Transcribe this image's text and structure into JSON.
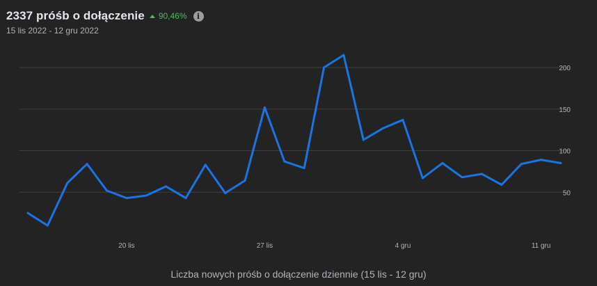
{
  "header": {
    "title": "2337 próśb o dołączenie",
    "change": "90,46%",
    "info_icon": "info-icon",
    "date_range": "15 lis 2022 - 12 gru 2022"
  },
  "colors": {
    "background": "#232324",
    "line": "#1b74e4",
    "grid": "#3e4042",
    "trend_up": "#45bd62",
    "axis_text": "#b0b3b8"
  },
  "chart_data": {
    "type": "line",
    "title": "",
    "xlabel": "Liczba nowych próśb o dołączenie dziennie (15 lis - 12 gru)",
    "ylabel": "",
    "grid": true,
    "ylim": [
      0,
      225
    ],
    "y_ticks": [
      50,
      100,
      150,
      200
    ],
    "x_ticks": [
      {
        "index": 5,
        "label": "20 lis"
      },
      {
        "index": 12,
        "label": "27 lis"
      },
      {
        "index": 19,
        "label": "4 gru"
      },
      {
        "index": 26,
        "label": "11 gru"
      }
    ],
    "series": [
      {
        "values": [
          25,
          10,
          61,
          84,
          52,
          43,
          46,
          57,
          43,
          83,
          49,
          64,
          152,
          87,
          79,
          200,
          215,
          113,
          127,
          137,
          67,
          85,
          68,
          72,
          59,
          84,
          89,
          85
        ]
      }
    ]
  }
}
